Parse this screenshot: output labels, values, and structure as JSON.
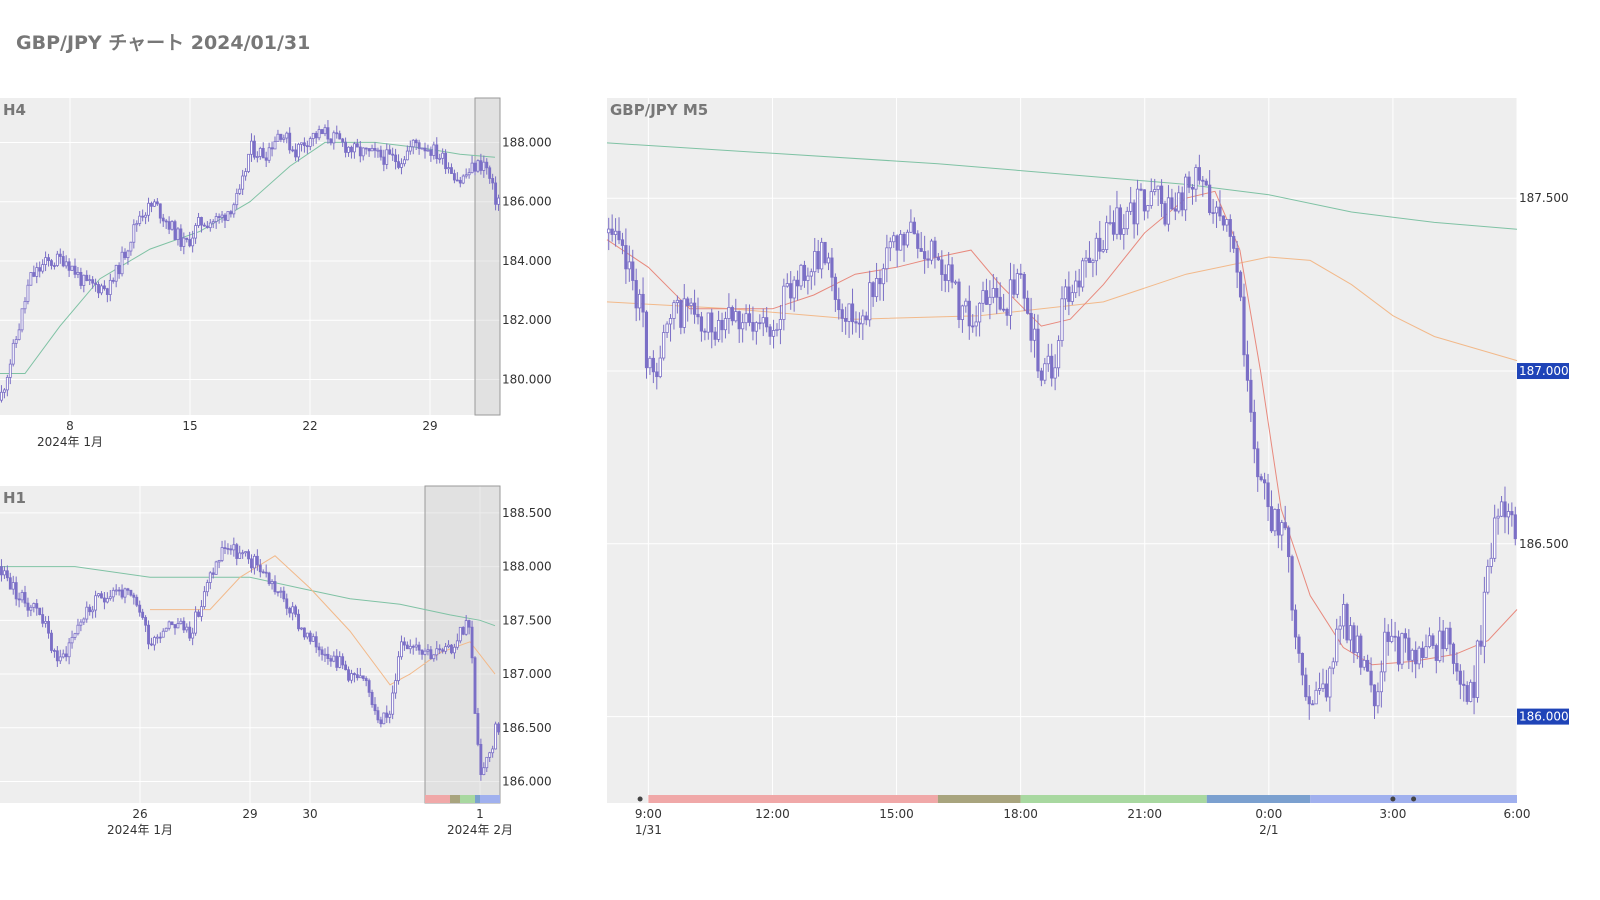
{
  "title": "GBP/JPY チャート 2024/01/31",
  "colors": {
    "plot_bg": "#eeeeee",
    "candle": "#7b6fc6",
    "ma_short": "#e8897d",
    "ma_mid": "#f2b98a",
    "ma_long": "#7fc2a4",
    "value_label_bg": "#1f44b8",
    "sessions": [
      "#f0a8a8",
      "#a8a47e",
      "#a8d8a0",
      "#7ba0cf",
      "#a0b0ee"
    ]
  },
  "chart_data": [
    {
      "id": "h4",
      "type": "candlestick",
      "label": "H4",
      "xlim": [
        0,
        100
      ],
      "ylim": [
        178.8,
        189.5
      ],
      "y_ticks": [
        {
          "v": 180,
          "t": "180.000"
        },
        {
          "v": 182,
          "t": "182.000"
        },
        {
          "v": 184,
          "t": "184.000"
        },
        {
          "v": 186,
          "t": "186.000"
        },
        {
          "v": 188,
          "t": "188.000"
        }
      ],
      "x_ticks": [
        {
          "x": 14,
          "t": "8",
          "sub": "2024年 1月"
        },
        {
          "x": 38,
          "t": "15",
          "sub": ""
        },
        {
          "x": 62,
          "t": "22",
          "sub": ""
        },
        {
          "x": 86,
          "t": "29",
          "sub": ""
        }
      ],
      "keypoints": [
        [
          0,
          179.3
        ],
        [
          3,
          181.2
        ],
        [
          6,
          183.4
        ],
        [
          9,
          183.9
        ],
        [
          13,
          184.1
        ],
        [
          17,
          183.2
        ],
        [
          22,
          183.1
        ],
        [
          25,
          184.3
        ],
        [
          28,
          185.6
        ],
        [
          31,
          185.9
        ],
        [
          34,
          185.2
        ],
        [
          37,
          184.5
        ],
        [
          40,
          185.3
        ],
        [
          44,
          185.4
        ],
        [
          48,
          186.2
        ],
        [
          50,
          187.8
        ],
        [
          53,
          187.6
        ],
        [
          56,
          188.4
        ],
        [
          59,
          187.7
        ],
        [
          62,
          188.2
        ],
        [
          65,
          188.3
        ],
        [
          68,
          188.0
        ],
        [
          71,
          187.7
        ],
        [
          74,
          187.6
        ],
        [
          77,
          187.5
        ],
        [
          80,
          187.4
        ],
        [
          83,
          188.0
        ],
        [
          86,
          187.8
        ],
        [
          89,
          187.4
        ],
        [
          92,
          186.7
        ],
        [
          95,
          187.2
        ],
        [
          97,
          187.3
        ],
        [
          99,
          186.1
        ]
      ],
      "ma": [
        {
          "color_key": "ma_long",
          "pts": [
            [
              0,
              180.2
            ],
            [
              5,
              180.2
            ],
            [
              12,
              181.8
            ],
            [
              20,
              183.4
            ],
            [
              30,
              184.4
            ],
            [
              40,
              185.0
            ],
            [
              50,
              186.0
            ],
            [
              58,
              187.2
            ],
            [
              65,
              188.0
            ],
            [
              75,
              188.0
            ],
            [
              85,
              187.8
            ],
            [
              92,
              187.6
            ],
            [
              99,
              187.5
            ]
          ]
        }
      ],
      "highlight": [
        95,
        100
      ],
      "sessions": [],
      "value_labels": []
    },
    {
      "id": "h1",
      "type": "candlestick",
      "label": "H1",
      "xlim": [
        0,
        100
      ],
      "ylim": [
        185.8,
        188.75
      ],
      "y_ticks": [
        {
          "v": 186,
          "t": "186.000"
        },
        {
          "v": 186.5,
          "t": "186.500"
        },
        {
          "v": 187,
          "t": "187.000"
        },
        {
          "v": 187.5,
          "t": "187.500"
        },
        {
          "v": 188,
          "t": "188.000"
        },
        {
          "v": 188.5,
          "t": "188.500"
        }
      ],
      "x_ticks": [
        {
          "x": 28,
          "t": "26",
          "sub": "2024年 1月"
        },
        {
          "x": 50,
          "t": "29",
          "sub": ""
        },
        {
          "x": 62,
          "t": "30",
          "sub": ""
        },
        {
          "x": 96,
          "t": "1",
          "sub": "2024年 2月"
        }
      ],
      "keypoints": [
        [
          0,
          188.0
        ],
        [
          4,
          187.7
        ],
        [
          8,
          187.6
        ],
        [
          10,
          187.3
        ],
        [
          12,
          187.1
        ],
        [
          16,
          187.5
        ],
        [
          20,
          187.7
        ],
        [
          23,
          187.8
        ],
        [
          26,
          187.7
        ],
        [
          28,
          187.6
        ],
        [
          30,
          187.3
        ],
        [
          34,
          187.5
        ],
        [
          38,
          187.4
        ],
        [
          40,
          187.6
        ],
        [
          42,
          187.9
        ],
        [
          45,
          188.2
        ],
        [
          48,
          188.1
        ],
        [
          52,
          188.0
        ],
        [
          55,
          187.8
        ],
        [
          58,
          187.6
        ],
        [
          62,
          187.3
        ],
        [
          66,
          187.2
        ],
        [
          70,
          187.0
        ],
        [
          73,
          186.9
        ],
        [
          76,
          186.6
        ],
        [
          78,
          186.6
        ],
        [
          80,
          187.3
        ],
        [
          83,
          187.3
        ],
        [
          86,
          187.2
        ],
        [
          90,
          187.2
        ],
        [
          92,
          187.4
        ],
        [
          94,
          187.5
        ],
        [
          95,
          186.6
        ],
        [
          96,
          186.1
        ],
        [
          98,
          186.2
        ],
        [
          99,
          186.5
        ]
      ],
      "ma": [
        {
          "color_key": "ma_long",
          "pts": [
            [
              0,
              188.0
            ],
            [
              15,
              188.0
            ],
            [
              30,
              187.9
            ],
            [
              50,
              187.9
            ],
            [
              60,
              187.8
            ],
            [
              70,
              187.7
            ],
            [
              80,
              187.65
            ],
            [
              90,
              187.55
            ],
            [
              96,
              187.5
            ],
            [
              99,
              187.45
            ]
          ]
        },
        {
          "color_key": "ma_mid",
          "pts": [
            [
              30,
              187.6
            ],
            [
              42,
              187.6
            ],
            [
              48,
              187.9
            ],
            [
              55,
              188.1
            ],
            [
              62,
              187.8
            ],
            [
              70,
              187.4
            ],
            [
              78,
              186.9
            ],
            [
              82,
              187.0
            ],
            [
              88,
              187.2
            ],
            [
              94,
              187.3
            ],
            [
              99,
              187.0
            ]
          ]
        }
      ],
      "highlight": [
        85,
        100
      ],
      "sessions": [
        {
          "from": 85,
          "to": 90,
          "c": 0
        },
        {
          "from": 90,
          "to": 92,
          "c": 1
        },
        {
          "from": 92,
          "to": 95,
          "c": 2
        },
        {
          "from": 95,
          "to": 96,
          "c": 3
        },
        {
          "from": 96,
          "to": 100,
          "c": 4
        }
      ],
      "value_labels": []
    },
    {
      "id": "m5",
      "type": "candlestick",
      "label": "GBP/JPY M5",
      "xlim": [
        0,
        22
      ],
      "ylim": [
        185.75,
        187.79
      ],
      "y_ticks": [
        {
          "v": 186,
          "t": "186.000"
        },
        {
          "v": 186.5,
          "t": "186.500"
        },
        {
          "v": 187,
          "t": "187.000"
        },
        {
          "v": 187.5,
          "t": "187.500"
        }
      ],
      "x_ticks": [
        {
          "x": 1,
          "t": "9:00",
          "sub": "1/31"
        },
        {
          "x": 4,
          "t": "12:00",
          "sub": ""
        },
        {
          "x": 7,
          "t": "15:00",
          "sub": ""
        },
        {
          "x": 10,
          "t": "18:00",
          "sub": ""
        },
        {
          "x": 13,
          "t": "21:00",
          "sub": ""
        },
        {
          "x": 16,
          "t": "0:00",
          "sub": "2/1"
        },
        {
          "x": 19,
          "t": "3:00",
          "sub": ""
        },
        {
          "x": 22,
          "t": "6:00",
          "sub": ""
        }
      ],
      "keypoints": [
        [
          0,
          187.4
        ],
        [
          0.5,
          187.3
        ],
        [
          0.8,
          187.2
        ],
        [
          1.0,
          187.0
        ],
        [
          1.3,
          187.05
        ],
        [
          1.6,
          187.15
        ],
        [
          2.0,
          187.2
        ],
        [
          2.3,
          187.1
        ],
        [
          2.7,
          187.15
        ],
        [
          3.0,
          187.2
        ],
        [
          3.5,
          187.1
        ],
        [
          4.0,
          187.15
        ],
        [
          4.3,
          187.2
        ],
        [
          4.7,
          187.3
        ],
        [
          5.0,
          187.3
        ],
        [
          5.3,
          187.35
        ],
        [
          5.6,
          187.2
        ],
        [
          6.0,
          187.15
        ],
        [
          6.3,
          187.2
        ],
        [
          6.6,
          187.3
        ],
        [
          7.0,
          187.35
        ],
        [
          7.3,
          187.4
        ],
        [
          7.6,
          187.35
        ],
        [
          8.0,
          187.35
        ],
        [
          8.2,
          187.3
        ],
        [
          8.5,
          187.2
        ],
        [
          8.8,
          187.15
        ],
        [
          9.2,
          187.2
        ],
        [
          9.6,
          187.2
        ],
        [
          10.0,
          187.25
        ],
        [
          10.3,
          187.1
        ],
        [
          10.5,
          187.0
        ],
        [
          10.8,
          187.0
        ],
        [
          11.0,
          187.2
        ],
        [
          11.3,
          187.25
        ],
        [
          11.6,
          187.3
        ],
        [
          12.0,
          187.4
        ],
        [
          12.5,
          187.45
        ],
        [
          13.0,
          187.5
        ],
        [
          13.3,
          187.5
        ],
        [
          13.6,
          187.45
        ],
        [
          14.0,
          187.52
        ],
        [
          14.3,
          187.55
        ],
        [
          14.6,
          187.5
        ],
        [
          15.0,
          187.45
        ],
        [
          15.3,
          187.2
        ],
        [
          15.5,
          186.9
        ],
        [
          15.7,
          186.75
        ],
        [
          16.0,
          186.6
        ],
        [
          16.4,
          186.5
        ],
        [
          16.7,
          186.2
        ],
        [
          17.0,
          186.05
        ],
        [
          17.4,
          186.1
        ],
        [
          17.8,
          186.3
        ],
        [
          18.1,
          186.2
        ],
        [
          18.5,
          186.05
        ],
        [
          18.8,
          186.2
        ],
        [
          19.2,
          186.2
        ],
        [
          19.6,
          186.15
        ],
        [
          20.0,
          186.2
        ],
        [
          20.3,
          186.25
        ],
        [
          20.6,
          186.1
        ],
        [
          20.9,
          186.05
        ],
        [
          21.2,
          186.3
        ],
        [
          21.5,
          186.6
        ],
        [
          21.8,
          186.6
        ],
        [
          21.95,
          186.55
        ]
      ],
      "ma": [
        {
          "color_key": "ma_long",
          "pts": [
            [
              0,
              187.66
            ],
            [
              4,
              187.63
            ],
            [
              8,
              187.6
            ],
            [
              12,
              187.56
            ],
            [
              14,
              187.54
            ],
            [
              16,
              187.51
            ],
            [
              18,
              187.46
            ],
            [
              20,
              187.43
            ],
            [
              22,
              187.41
            ]
          ]
        },
        {
          "color_key": "ma_mid",
          "pts": [
            [
              0,
              187.2
            ],
            [
              3,
              187.18
            ],
            [
              6,
              187.15
            ],
            [
              9,
              187.16
            ],
            [
              12,
              187.2
            ],
            [
              14,
              187.28
            ],
            [
              16,
              187.33
            ],
            [
              17,
              187.32
            ],
            [
              18,
              187.25
            ],
            [
              19,
              187.16
            ],
            [
              20,
              187.1
            ],
            [
              22,
              187.03
            ]
          ]
        },
        {
          "color_key": "ma_short",
          "pts": [
            [
              0,
              187.38
            ],
            [
              1,
              187.3
            ],
            [
              2,
              187.18
            ],
            [
              3,
              187.18
            ],
            [
              4,
              187.18
            ],
            [
              5,
              187.22
            ],
            [
              6,
              187.28
            ],
            [
              7,
              187.3
            ],
            [
              8,
              187.33
            ],
            [
              8.8,
              187.35
            ],
            [
              9.5,
              187.25
            ],
            [
              10.5,
              187.13
            ],
            [
              11.2,
              187.15
            ],
            [
              12,
              187.25
            ],
            [
              13,
              187.4
            ],
            [
              14,
              187.5
            ],
            [
              14.7,
              187.52
            ],
            [
              15.3,
              187.35
            ],
            [
              15.8,
              187.0
            ],
            [
              16.3,
              186.6
            ],
            [
              17,
              186.35
            ],
            [
              17.8,
              186.2
            ],
            [
              18.5,
              186.15
            ],
            [
              19.5,
              186.16
            ],
            [
              20.5,
              186.18
            ],
            [
              21.3,
              186.22
            ],
            [
              22,
              186.31
            ]
          ]
        }
      ],
      "highlight": null,
      "sessions": [
        {
          "from": 1,
          "to": 8,
          "c": 0
        },
        {
          "from": 8,
          "to": 10,
          "c": 1
        },
        {
          "from": 10,
          "to": 14.5,
          "c": 2
        },
        {
          "from": 14.5,
          "to": 17,
          "c": 3
        },
        {
          "from": 17,
          "to": 22,
          "c": 4
        }
      ],
      "session_dots": [
        0.8,
        19.0,
        19.5
      ],
      "value_labels": [
        {
          "v": 187.0,
          "t": "187.000"
        },
        {
          "v": 186.0,
          "t": "186.000"
        }
      ]
    }
  ]
}
